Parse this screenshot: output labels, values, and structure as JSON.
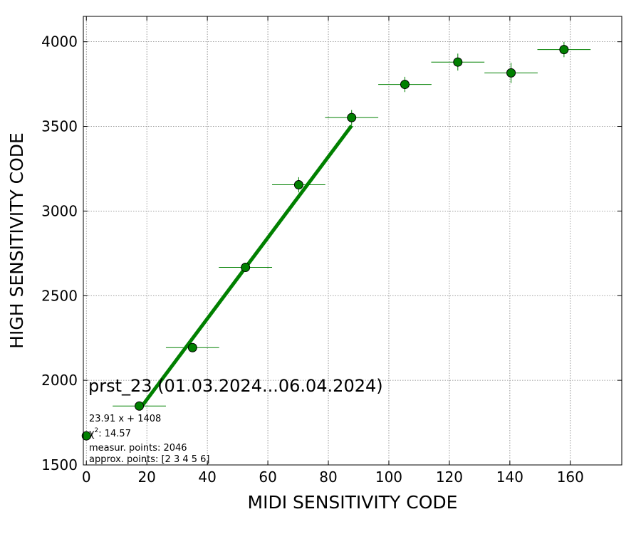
{
  "chart_data": {
    "type": "scatter",
    "title": "prst_23 (01.03.2024...06.04.2024)",
    "xlabel": "MIDI SENSITIVITY CODE",
    "ylabel": "HIGH SENSITIVITY CODE",
    "xlim": [
      -1,
      177
    ],
    "ylim": [
      1500,
      4150
    ],
    "xticks": [
      0,
      20,
      40,
      60,
      80,
      100,
      120,
      140,
      160
    ],
    "yticks": [
      1500,
      2000,
      2500,
      3000,
      3500,
      4000
    ],
    "grid": true,
    "colors": {
      "marker": "#008000",
      "fit_line": "#008000",
      "errorbar": "#008000",
      "grid": "#808080"
    },
    "series": [
      {
        "points": [
          {
            "x": 0,
            "y": 1672,
            "xerr": 0,
            "yerr": 0
          },
          {
            "x": 17.5,
            "y": 1848,
            "xerr": 8.8,
            "yerr": 15
          },
          {
            "x": 35.1,
            "y": 2193,
            "xerr": 8.8,
            "yerr": 15
          },
          {
            "x": 52.6,
            "y": 2667,
            "xerr": 8.8,
            "yerr": 20
          },
          {
            "x": 70.2,
            "y": 3155,
            "xerr": 8.8,
            "yerr": 45
          },
          {
            "x": 87.7,
            "y": 3552,
            "xerr": 8.8,
            "yerr": 45
          },
          {
            "x": 105.3,
            "y": 3748,
            "xerr": 8.8,
            "yerr": 45
          },
          {
            "x": 122.8,
            "y": 3880,
            "xerr": 8.8,
            "yerr": 50
          },
          {
            "x": 140.4,
            "y": 3816,
            "xerr": 8.8,
            "yerr": 60
          },
          {
            "x": 157.9,
            "y": 3954,
            "xerr": 8.8,
            "yerr": 45
          }
        ]
      }
    ],
    "fit": {
      "slope": 23.91,
      "intercept": 1408,
      "x_range": [
        17.5,
        87.7
      ]
    },
    "annotations": {
      "equation": "23.91 x + 1408",
      "chi2_symbol": "χ",
      "chi2_power": "2",
      "chi2_value": ": 14.57",
      "measured": "measur. points: 2046",
      "approx": "approx. points: [2 3 4 5 6]"
    }
  }
}
